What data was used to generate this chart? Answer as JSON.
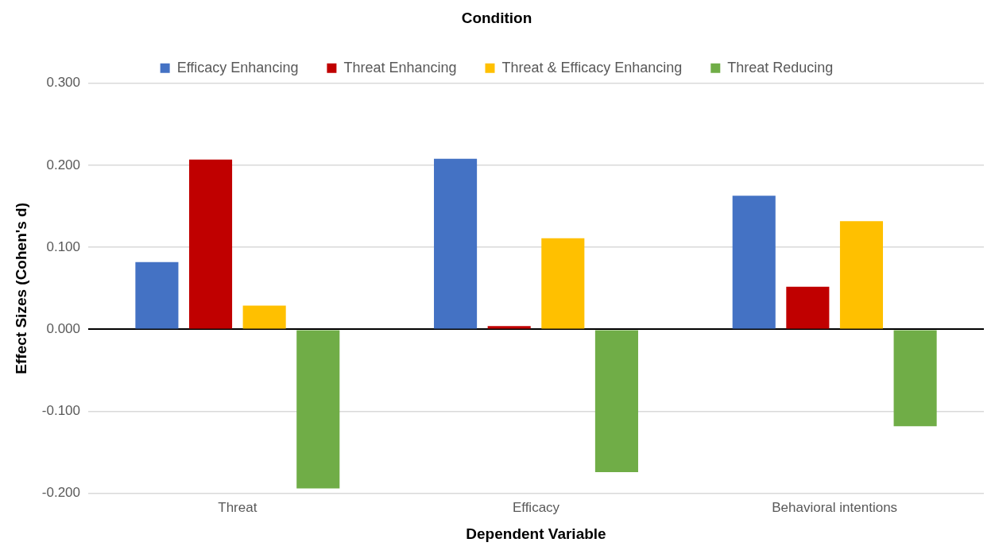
{
  "chart_data": {
    "type": "bar",
    "xlabel": "Dependent Variable",
    "ylabel": "Effect Sizes (Cohen's d)",
    "legend_title": "Condition",
    "legend": "top",
    "grid": "y",
    "categories": [
      "Threat",
      "Efficacy",
      "Behavioral intentions"
    ],
    "series": [
      {
        "name": "Efficacy Enhancing",
        "color": "#4472c4",
        "values": [
          0.082,
          0.208,
          0.163
        ]
      },
      {
        "name": "Threat Enhancing",
        "color": "#c00000",
        "values": [
          0.207,
          0.004,
          0.052
        ]
      },
      {
        "name": "Threat & Efficacy Enhancing",
        "color": "#ffc000",
        "values": [
          0.029,
          0.111,
          0.132
        ]
      },
      {
        "name": "Threat Reducing",
        "color": "#70ad47",
        "values": [
          -0.194,
          -0.174,
          -0.118
        ]
      }
    ],
    "ylim": [
      -0.2,
      0.3
    ],
    "yticks": [
      {
        "value": -0.2,
        "label": "-0.200"
      },
      {
        "value": -0.1,
        "label": "-0.100"
      },
      {
        "value": 0,
        "label": "0.000"
      },
      {
        "value": 0.1,
        "label": "0.100"
      },
      {
        "value": 0.2,
        "label": "0.200"
      },
      {
        "value": 0.3,
        "label": "0.300"
      }
    ]
  }
}
